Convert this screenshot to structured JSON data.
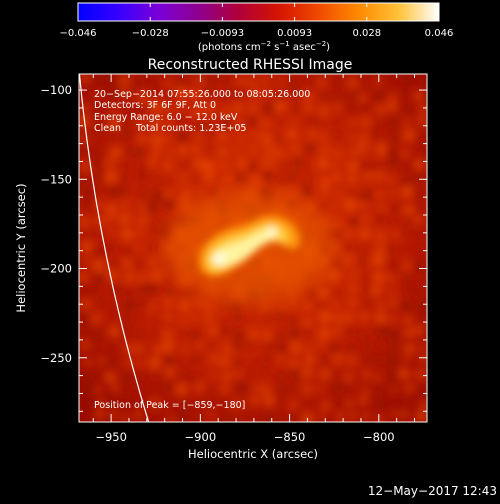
{
  "colorbar": {
    "tick_labels": [
      "−0.046",
      "−0.028",
      "−0.0093",
      "0.0093",
      "0.028",
      "0.046"
    ],
    "units_label": "(photons cm",
    "units_exp1": "−2",
    "units_mid": " s",
    "units_exp2": "−1",
    "units_end": " asec",
    "units_exp3": "−2",
    "units_close": ")",
    "palette": [
      "#0000ff",
      "#3600ff",
      "#7a00d8",
      "#8e0090",
      "#b0003a",
      "#d41500",
      "#f04a00",
      "#ff8a00",
      "#ffc23a",
      "#ffffff"
    ]
  },
  "image": {
    "title": "Reconstructed RHESSI Image",
    "annotation_lines": [
      "20−Sep−2014 07:55:26.000 to 08:05:26.000",
      "Detectors: 3F 6F 9F, Att 0",
      "Energy Range: 6.0 − 12.0 keV",
      "Clean     Total counts: 1.23E+05"
    ],
    "peak_text": "Position of Peak = [−859,−180]",
    "xlabel": "Heliocentric X (arcsec)",
    "ylabel": "Heliocentric Y (arcsec)",
    "xticks": [
      -950,
      -900,
      -850,
      -800
    ],
    "yticks": [
      -100,
      -150,
      -200,
      -250
    ],
    "xtick_labels": [
      "−950",
      "−900",
      "−850",
      "−800"
    ],
    "ytick_labels": [
      "−100",
      "−150",
      "−200",
      "−250"
    ],
    "xlim": [
      -968,
      -773
    ],
    "ylim": [
      -286,
      -91
    ],
    "source_peak_x": -859,
    "source_peak_y": -180
  },
  "footer": {
    "timestamp": "12−May−2017 12:43"
  }
}
